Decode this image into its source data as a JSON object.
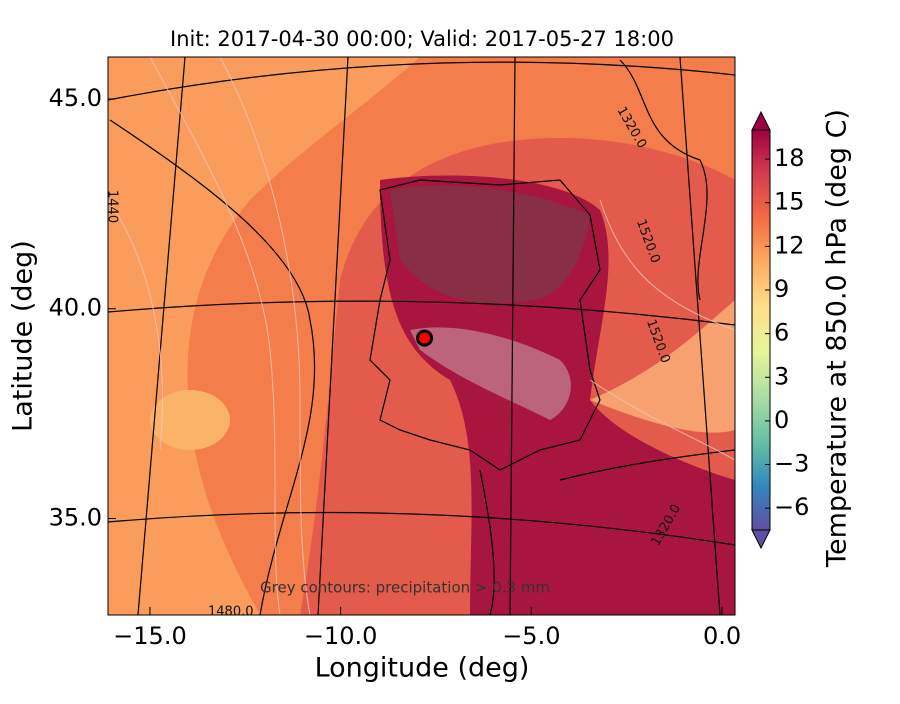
{
  "chart_data": {
    "type": "map",
    "title": "Init: 2017-04-30 00:00; Valid: 2017-05-27 18:00",
    "xlabel": "Longitude (deg)",
    "ylabel": "Latitude (deg)",
    "xlim": [
      -16.1,
      0.34
    ],
    "ylim": [
      32.7,
      46.0
    ],
    "xticks": [
      {
        "value": -15,
        "label": "−15.0"
      },
      {
        "value": -10,
        "label": "−10.0"
      },
      {
        "value": -5,
        "label": "−5.0"
      },
      {
        "value": 0,
        "label": "0.0"
      }
    ],
    "yticks": [
      {
        "value": 35,
        "label": "35.0"
      },
      {
        "value": 40,
        "label": "40.0"
      },
      {
        "value": 45,
        "label": "45.0"
      }
    ],
    "colorbar": {
      "label": "Temperature at 850.0 hPa (deg C)",
      "lim": [
        -7.5,
        20
      ],
      "ticks": [
        {
          "value": -6,
          "label": "−6"
        },
        {
          "value": -3,
          "label": "−3"
        },
        0,
        3,
        6,
        9,
        12,
        15,
        18
      ],
      "colormap": [
        "#5e4fa2",
        "#3288bd",
        "#66c2a5",
        "#abdda4",
        "#e6f598",
        "#fee08b",
        "#fdae61",
        "#f46d43",
        "#d53e4f",
        "#9e0142"
      ]
    },
    "annotation": "Grey contours: precipitation > 0.3 mm",
    "contour_labels": [
      "1320.0",
      "1520.0",
      "1520.0",
      "1320.0",
      "1480.0",
      "1440"
    ],
    "marker": {
      "x": -7.8,
      "y": 39.3,
      "color": "#ff0000"
    }
  }
}
